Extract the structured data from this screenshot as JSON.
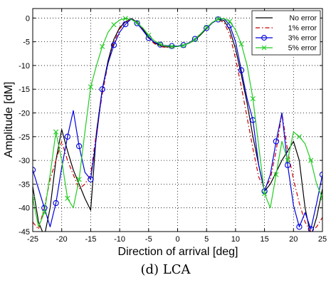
{
  "caption": "(d) LCA",
  "chart_data": {
    "type": "line",
    "title": "",
    "xlabel": "Direction of arrival [deg]",
    "ylabel": "Amplitude [dM]",
    "xlim": [
      -25,
      25
    ],
    "ylim": [
      -45,
      2
    ],
    "xticks": [
      -25,
      -20,
      -15,
      -10,
      -5,
      0,
      5,
      10,
      15,
      20,
      25
    ],
    "yticks": [
      0,
      -5,
      -10,
      -15,
      -20,
      -25,
      -30,
      -35,
      -40,
      -45
    ],
    "grid": true,
    "legend_position": "top-right",
    "series": [
      {
        "name": "No error",
        "color": "#000000",
        "style": "solid",
        "marker": "none",
        "x": [
          -25,
          -24,
          -23,
          -22,
          -21,
          -20,
          -19,
          -18,
          -17,
          -16,
          -15,
          -14,
          -13,
          -12,
          -11,
          -10,
          -9,
          -8,
          -7,
          -6,
          -5,
          -4,
          -3,
          -2,
          -1,
          0,
          1,
          2,
          3,
          4,
          5,
          6,
          7,
          8,
          9,
          10,
          11,
          12,
          13,
          14,
          15,
          16,
          17,
          18,
          19,
          20,
          21,
          22,
          23,
          24,
          25
        ],
        "y": [
          -35.5,
          -43,
          -46,
          -40,
          -30,
          -23.5,
          -28,
          -32,
          -35,
          -38,
          -40.5,
          -24,
          -15,
          -9,
          -4.5,
          -2,
          -0.8,
          -0.1,
          -0.8,
          -2.3,
          -4,
          -5.2,
          -5.8,
          -6.1,
          -6.1,
          -6.0,
          -5.7,
          -5.3,
          -4.6,
          -3.5,
          -2.2,
          -1.0,
          -0.3,
          -0.5,
          -2.5,
          -6.5,
          -12,
          -18,
          -25,
          -31,
          -36.5,
          -35,
          -32.5,
          -30,
          -28,
          -26,
          -30,
          -40,
          -46,
          -42,
          -36
        ]
      },
      {
        "name": "1% error",
        "color": "#cc0000",
        "style": "dashdot",
        "marker": "none",
        "x": [
          -25,
          -24,
          -23,
          -22,
          -21,
          -20,
          -19,
          -18,
          -17,
          -16,
          -15,
          -14,
          -13,
          -12,
          -11,
          -10,
          -9,
          -8,
          -7,
          -6,
          -5,
          -4,
          -3,
          -2,
          -1,
          0,
          1,
          2,
          3,
          4,
          5,
          6,
          7,
          8,
          9,
          10,
          11,
          12,
          13,
          14,
          15,
          16,
          17,
          18,
          19,
          20,
          21,
          22,
          23,
          24,
          25
        ],
        "y": [
          -43,
          -44.5,
          -40,
          -34,
          -30,
          -26,
          -30,
          -33,
          -36,
          -35,
          -33,
          -24,
          -16,
          -9.5,
          -5.2,
          -2.3,
          -0.9,
          -0.2,
          -0.9,
          -2.5,
          -4.3,
          -5.4,
          -6.0,
          -6.2,
          -6.1,
          -6.0,
          -5.7,
          -5.2,
          -4.4,
          -3.3,
          -2.0,
          -0.9,
          -0.4,
          -0.9,
          -3.5,
          -8.5,
          -14.5,
          -21,
          -27.5,
          -33.5,
          -36,
          -34,
          -28,
          -20,
          -28,
          -34,
          -39,
          -43,
          -45,
          -44,
          -42
        ]
      },
      {
        "name": "3% error",
        "color": "#0000dd",
        "style": "solid",
        "marker": "circle",
        "x": [
          -25,
          -24,
          -23,
          -22,
          -21,
          -20,
          -19,
          -18,
          -17,
          -16,
          -15,
          -14,
          -13,
          -12,
          -11,
          -10,
          -9,
          -8,
          -7,
          -6,
          -5,
          -4,
          -3,
          -2,
          -1,
          0,
          1,
          2,
          3,
          4,
          5,
          6,
          7,
          8,
          9,
          10,
          11,
          12,
          13,
          14,
          15,
          16,
          17,
          18,
          19,
          20,
          21,
          22,
          23,
          24,
          25
        ],
        "y": [
          -32,
          -36,
          -40,
          -44,
          -39,
          -31.5,
          -25,
          -19.5,
          -27,
          -32.5,
          -34,
          -25,
          -15,
          -9.5,
          -5.7,
          -3.0,
          -1.3,
          -0.2,
          -1.1,
          -2.6,
          -4.2,
          -5.1,
          -5.6,
          -5.8,
          -5.9,
          -5.9,
          -5.7,
          -5.2,
          -4.4,
          -3.3,
          -2.1,
          -1.0,
          -0.3,
          -0.1,
          -1.5,
          -5,
          -11,
          -17,
          -21.5,
          -31,
          -36.5,
          -33,
          -26,
          -20,
          -31,
          -39.5,
          -44,
          -41,
          -44.5,
          -39,
          -33
        ]
      },
      {
        "name": "5% error",
        "color": "#22cc22",
        "style": "solid",
        "marker": "x",
        "x": [
          -25,
          -24,
          -23,
          -22,
          -21,
          -20,
          -19,
          -18,
          -17,
          -16,
          -15,
          -14,
          -13,
          -12,
          -11,
          -10,
          -9,
          -8,
          -7,
          -6,
          -5,
          -4,
          -3,
          -2,
          -1,
          0,
          1,
          2,
          3,
          4,
          5,
          6,
          7,
          8,
          9,
          10,
          11,
          12,
          13,
          14,
          15,
          16,
          17,
          18,
          19,
          20,
          21,
          22,
          23,
          24,
          25
        ],
        "y": [
          -38,
          -44,
          -41,
          -33,
          -24,
          -30,
          -38,
          -40,
          -34,
          -24,
          -14.5,
          -10,
          -6,
          -3,
          -1.4,
          -0.4,
          -0.1,
          -0.3,
          -1.0,
          -2.1,
          -3.6,
          -4.8,
          -5.5,
          -5.9,
          -6.0,
          -6.0,
          -5.8,
          -5.3,
          -4.5,
          -3.3,
          -2.0,
          -0.9,
          -0.2,
          -0.1,
          -0.7,
          -2.5,
          -5.5,
          -10,
          -17,
          -27,
          -37,
          -40,
          -33,
          -26,
          -30,
          -24,
          -25,
          -26.5,
          -30,
          -35,
          -38
        ]
      }
    ]
  }
}
